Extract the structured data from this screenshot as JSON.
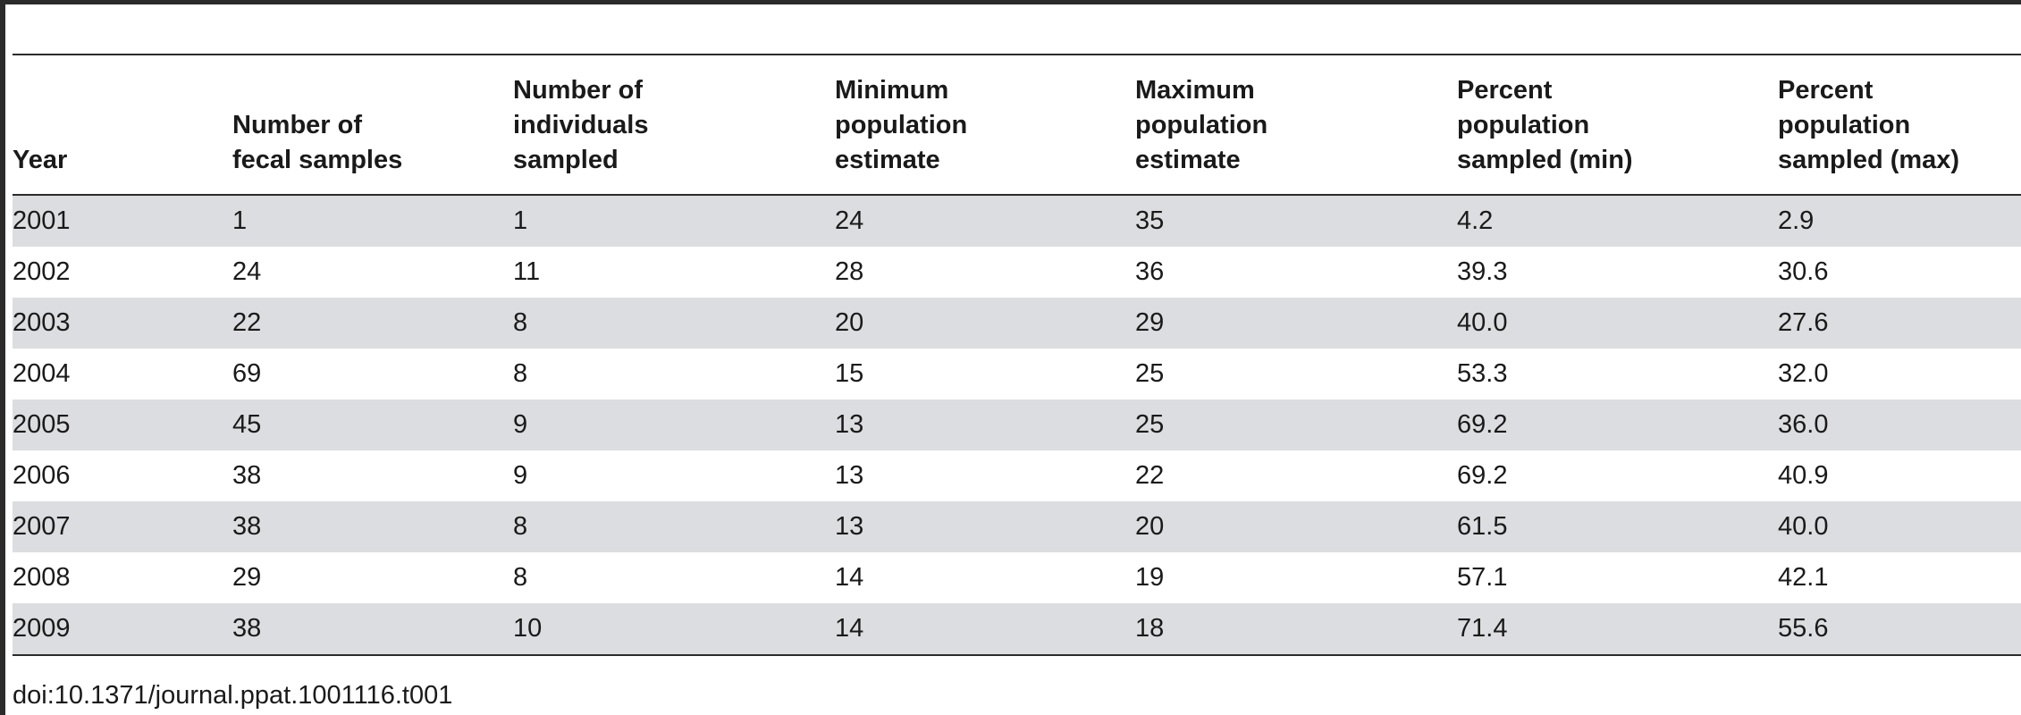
{
  "table": {
    "headers": [
      "Year",
      "Number of fecal samples",
      "Number of individuals sampled",
      "Minimum population estimate",
      "Maximum population estimate",
      "Percent population sampled (min)",
      "Percent population sampled (max)"
    ],
    "header_lines": [
      [
        "Year"
      ],
      [
        "Number of",
        "fecal samples"
      ],
      [
        "Number of",
        "individuals",
        "sampled"
      ],
      [
        "Minimum",
        "population",
        "estimate"
      ],
      [
        "Maximum",
        "population",
        "estimate"
      ],
      [
        "Percent",
        "population",
        "sampled (min)"
      ],
      [
        "Percent",
        "population",
        "sampled (max)"
      ]
    ],
    "rows": [
      [
        "2001",
        "1",
        "1",
        "24",
        "35",
        "4.2",
        "2.9"
      ],
      [
        "2002",
        "24",
        "11",
        "28",
        "36",
        "39.3",
        "30.6"
      ],
      [
        "2003",
        "22",
        "8",
        "20",
        "29",
        "40.0",
        "27.6"
      ],
      [
        "2004",
        "69",
        "8",
        "15",
        "25",
        "53.3",
        "32.0"
      ],
      [
        "2005",
        "45",
        "9",
        "13",
        "25",
        "69.2",
        "36.0"
      ],
      [
        "2006",
        "38",
        "9",
        "13",
        "22",
        "69.2",
        "40.9"
      ],
      [
        "2007",
        "38",
        "8",
        "13",
        "20",
        "61.5",
        "40.0"
      ],
      [
        "2008",
        "29",
        "8",
        "14",
        "19",
        "57.1",
        "42.1"
      ],
      [
        "2009",
        "38",
        "10",
        "14",
        "18",
        "71.4",
        "55.6"
      ]
    ]
  },
  "footnote": "doi:10.1371/journal.ppat.1001116.t001",
  "colors": {
    "stripe": "#dcdde0",
    "rule": "#2b2b2b",
    "text": "#1a1a1a"
  }
}
